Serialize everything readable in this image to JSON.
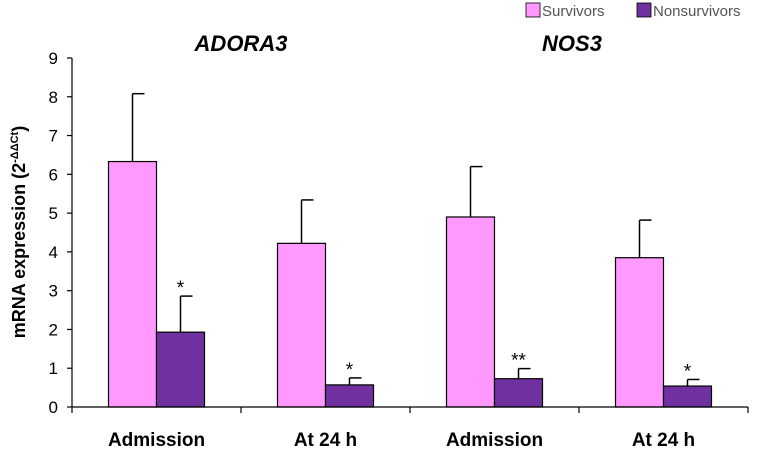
{
  "chart_data": {
    "type": "bar",
    "ylabel_main": "mRNA expression (2",
    "ylabel_sup": "-ΔΔCt",
    "ylabel_close": ")",
    "ylim": [
      0,
      9
    ],
    "yticks": [
      "0",
      "1",
      "2",
      "3",
      "4",
      "5",
      "6",
      "7",
      "8",
      "9"
    ],
    "groups": [
      {
        "title": "ADORA3"
      },
      {
        "title": "NOS3"
      }
    ],
    "categories": [
      "Admission",
      "At 24 h",
      "Admission",
      "At 24 h"
    ],
    "series": [
      {
        "name": "Survivors",
        "color": "#ff99ff",
        "values": [
          6.33,
          4.22,
          4.9,
          3.85
        ],
        "errors": [
          1.75,
          1.12,
          1.3,
          0.97
        ]
      },
      {
        "name": "Nonsurvivors",
        "color": "#7030a0",
        "values": [
          1.93,
          0.57,
          0.73,
          0.54
        ],
        "errors": [
          0.93,
          0.18,
          0.26,
          0.17
        ]
      }
    ],
    "significance": [
      "*",
      "*",
      "**",
      "*"
    ]
  },
  "legend": {
    "survivors": "Survivors",
    "nonsurvivors": "Nonsurvivors"
  }
}
